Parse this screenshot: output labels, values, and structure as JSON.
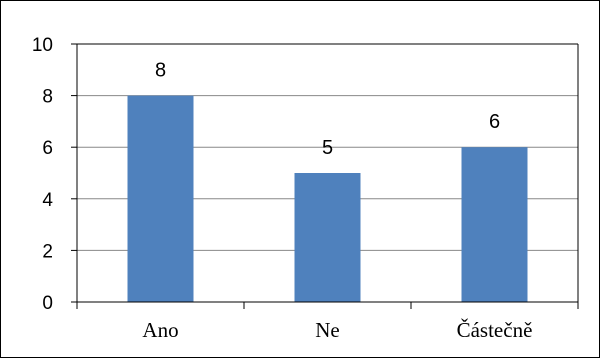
{
  "chart_data": {
    "type": "bar",
    "title": "",
    "categories": [
      "Ano",
      "Ne",
      "Částečně"
    ],
    "values": [
      8,
      5,
      6
    ],
    "data_labels": [
      "8",
      "5",
      "6"
    ],
    "ylim": [
      0,
      10
    ],
    "yticks": [
      0,
      2,
      4,
      6,
      8,
      10
    ],
    "ytick_labels": [
      "0",
      "2",
      "4",
      "6",
      "8",
      "10"
    ],
    "xlabel": "",
    "ylabel": "",
    "grid": true,
    "legend": "none",
    "bar_color": "#4f81bd",
    "axis_color": "#000000",
    "grid_color": "#888888"
  }
}
